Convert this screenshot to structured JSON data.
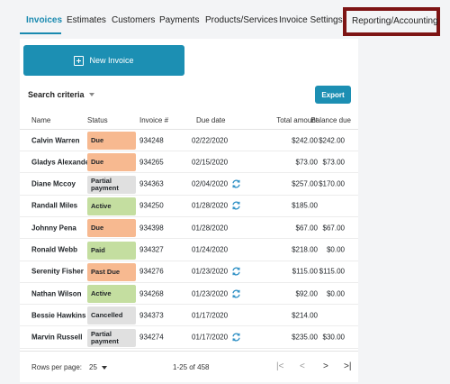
{
  "tabs": [
    {
      "label": "Invoices",
      "active": true
    },
    {
      "label": "Estimates"
    },
    {
      "label": "Customers"
    },
    {
      "label": "Payments"
    },
    {
      "label": "Products/Services"
    },
    {
      "label": "Invoice Settings"
    },
    {
      "label": "Reporting/Accounting",
      "highlighted": true
    }
  ],
  "toolbar": {
    "new_invoice_label": "New Invoice",
    "search_criteria_label": "Search criteria",
    "export_label": "Export"
  },
  "table": {
    "headers": [
      "Name",
      "Status",
      "Invoice #",
      "Due date",
      "Total amount",
      "Balance due"
    ],
    "rows": [
      {
        "name": "Calvin Warren",
        "status": "Due",
        "invoice": "934248",
        "due": "02/22/2020",
        "recurring": false,
        "total": "$242.00",
        "balance": "$242.00"
      },
      {
        "name": "Gladys Alexander",
        "status": "Due",
        "invoice": "934265",
        "due": "02/15/2020",
        "recurring": false,
        "total": "$73.00",
        "balance": "$73.00"
      },
      {
        "name": "Diane Mccoy",
        "status": "Partial payment",
        "invoice": "934363",
        "due": "02/04/2020",
        "recurring": true,
        "total": "$257.00",
        "balance": "$170.00"
      },
      {
        "name": "Randall Miles",
        "status": "Active",
        "invoice": "934250",
        "due": "01/28/2020",
        "recurring": true,
        "total": "$185.00",
        "balance": ""
      },
      {
        "name": "Johnny Pena",
        "status": "Due",
        "invoice": "934398",
        "due": "01/28/2020",
        "recurring": false,
        "total": "$67.00",
        "balance": "$67.00"
      },
      {
        "name": "Ronald Webb",
        "status": "Paid",
        "invoice": "934327",
        "due": "01/24/2020",
        "recurring": false,
        "total": "$218.00",
        "balance": "$0.00"
      },
      {
        "name": "Serenity Fisher",
        "status": "Past Due",
        "invoice": "934276",
        "due": "01/23/2020",
        "recurring": true,
        "total": "$115.00",
        "balance": "$115.00"
      },
      {
        "name": "Nathan Wilson",
        "status": "Active",
        "invoice": "934268",
        "due": "01/23/2020",
        "recurring": true,
        "total": "$92.00",
        "balance": "$0.00"
      },
      {
        "name": "Bessie Hawkins",
        "status": "Cancelled",
        "invoice": "934373",
        "due": "01/17/2020",
        "recurring": false,
        "total": "$214.00",
        "balance": ""
      },
      {
        "name": "Marvin Russell",
        "status": "Partial payment",
        "invoice": "934274",
        "due": "01/17/2020",
        "recurring": true,
        "total": "$235.00",
        "balance": "$30.00"
      }
    ]
  },
  "status_colors": {
    "Due": "#f7b990",
    "Past Due": "#f7b990",
    "Partial payment": "#e0e0e0",
    "Cancelled": "#e0e0e0",
    "Active": "#c4dea0",
    "Paid": "#c4dea0"
  },
  "pagination": {
    "rows_per_page_label": "Rows per page:",
    "rows_per_page_value": "25",
    "range_text": "1-25 of 458",
    "first_glyph": "|<",
    "prev_glyph": "<",
    "next_glyph": ">",
    "last_glyph": ">|"
  },
  "colors": {
    "accent": "#1c8fb3",
    "highlight_border": "#7d1414"
  }
}
